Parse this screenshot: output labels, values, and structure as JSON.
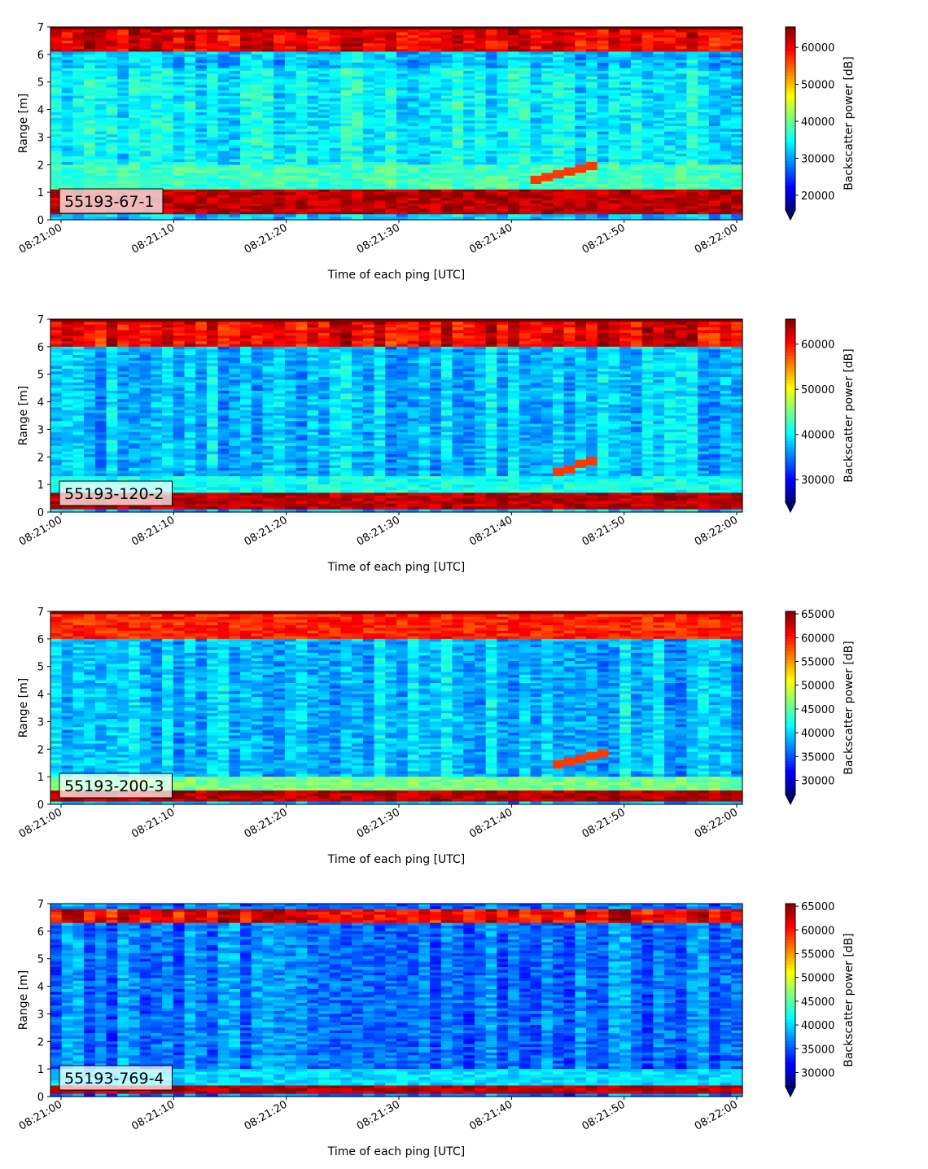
{
  "chart_data": [
    {
      "type": "heatmap",
      "label": "55193-67-1",
      "xlabel": "Time of each ping [UTC]",
      "ylabel": "Range [m]",
      "xticks": [
        "08:21:00",
        "08:21:10",
        "08:21:20",
        "08:21:30",
        "08:21:40",
        "08:21:50",
        "08:22:00"
      ],
      "yticks": [
        "0",
        "1",
        "2",
        "3",
        "4",
        "5",
        "6",
        "7"
      ],
      "ylim": [
        0,
        7
      ],
      "colorbar": {
        "label": "Backscatter power [dB]",
        "min": 16000,
        "max": 65535,
        "ticks": [
          "20000",
          "30000",
          "40000",
          "50000",
          "60000"
        ],
        "colormap": "jet",
        "extend": "min"
      },
      "features": [
        {
          "range": [
            0.2,
            1.1
          ],
          "level": 1.0
        },
        {
          "range": [
            1.1,
            2.0
          ],
          "level": 0.5
        },
        {
          "range": [
            6.1,
            7.0
          ],
          "level": 0.95
        },
        {
          "slant_from": [
            "08:21:42",
            1.4
          ],
          "slant_to": [
            "08:21:48",
            2.1
          ]
        }
      ]
    },
    {
      "type": "heatmap",
      "label": "55193-120-2",
      "xlabel": "Time of each ping [UTC]",
      "ylabel": "Range [m]",
      "xticks": [
        "08:21:00",
        "08:21:10",
        "08:21:20",
        "08:21:30",
        "08:21:40",
        "08:21:50",
        "08:22:00"
      ],
      "yticks": [
        "0",
        "1",
        "2",
        "3",
        "4",
        "5",
        "6",
        "7"
      ],
      "ylim": [
        0,
        7
      ],
      "colorbar": {
        "label": "Backscatter power [dB]",
        "min": 25000,
        "max": 65535,
        "ticks": [
          "30000",
          "40000",
          "50000",
          "60000"
        ],
        "colormap": "jet",
        "extend": "min"
      },
      "features": [
        {
          "range": [
            0.1,
            0.7
          ],
          "level": 1.0
        },
        {
          "range": [
            0.7,
            1.3
          ],
          "level": 0.45
        },
        {
          "range": [
            6.0,
            7.0
          ],
          "level": 0.95
        },
        {
          "slant_from": [
            "08:21:44",
            1.4
          ],
          "slant_to": [
            "08:21:48",
            2.0
          ]
        }
      ]
    },
    {
      "type": "heatmap",
      "label": "55193-200-3",
      "xlabel": "Time of each ping [UTC]",
      "ylabel": "Range [m]",
      "xticks": [
        "08:21:00",
        "08:21:10",
        "08:21:20",
        "08:21:30",
        "08:21:40",
        "08:21:50",
        "08:22:00"
      ],
      "yticks": [
        "0",
        "1",
        "2",
        "3",
        "4",
        "5",
        "6",
        "7"
      ],
      "ylim": [
        0,
        7
      ],
      "colorbar": {
        "label": "Backscatter power [dB]",
        "min": 27000,
        "max": 65535,
        "ticks": [
          "30000",
          "35000",
          "40000",
          "45000",
          "50000",
          "55000",
          "60000",
          "65000"
        ],
        "colormap": "jet",
        "extend": "min"
      },
      "features": [
        {
          "range": [
            0.1,
            0.5
          ],
          "level": 1.0
        },
        {
          "range": [
            0.5,
            1.0
          ],
          "level": 0.55
        },
        {
          "range": [
            6.0,
            7.0
          ],
          "level": 0.9
        },
        {
          "slant_from": [
            "08:21:44",
            1.4
          ],
          "slant_to": [
            "08:21:49",
            1.9
          ]
        }
      ]
    },
    {
      "type": "heatmap",
      "label": "55193-769-4",
      "xlabel": "Time of each ping [UTC]",
      "ylabel": "Range [m]",
      "xticks": [
        "08:21:00",
        "08:21:10",
        "08:21:20",
        "08:21:30",
        "08:21:40",
        "08:21:50",
        "08:22:00"
      ],
      "yticks": [
        "0",
        "1",
        "2",
        "3",
        "4",
        "5",
        "6",
        "7"
      ],
      "ylim": [
        0,
        7
      ],
      "colorbar": {
        "label": "Backscatter power [dB]",
        "min": 27000,
        "max": 65535,
        "ticks": [
          "30000",
          "35000",
          "40000",
          "45000",
          "50000",
          "55000",
          "60000",
          "65000"
        ],
        "colormap": "jet",
        "extend": "min"
      },
      "features": [
        {
          "range": [
            0.1,
            0.35
          ],
          "level": 1.0
        },
        {
          "range": [
            0.35,
            1.0
          ],
          "level": 0.4
        },
        {
          "range": [
            6.3,
            6.8
          ],
          "level": 0.95
        }
      ]
    }
  ]
}
